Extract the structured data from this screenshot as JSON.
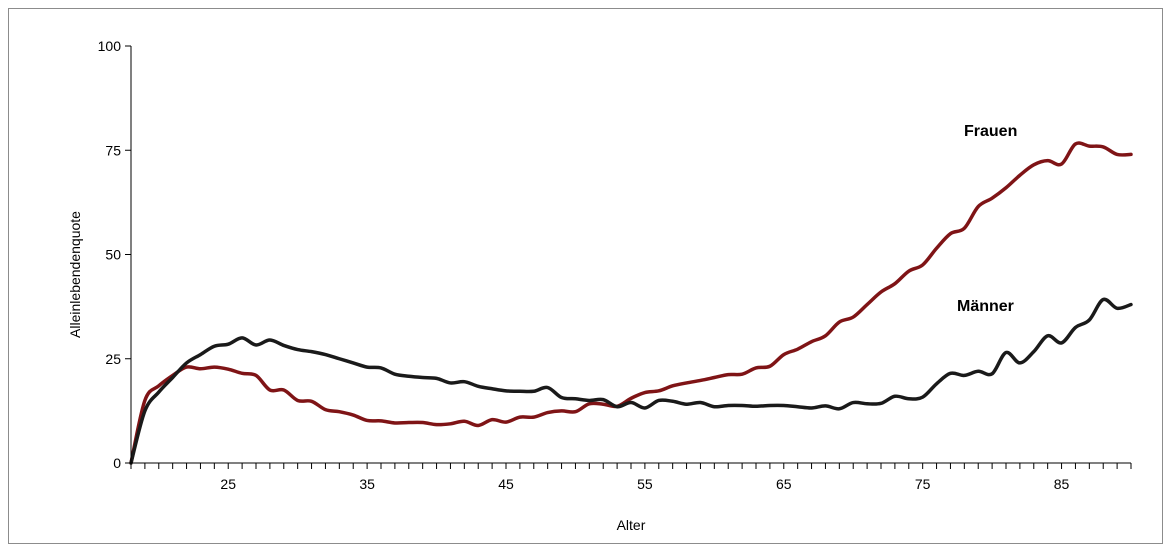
{
  "chart_data": {
    "type": "line",
    "title": "",
    "xlabel": "Alter",
    "ylabel": "Alleinlebendenquote",
    "xlim": [
      18,
      90
    ],
    "ylim": [
      0,
      100
    ],
    "x_ticks": [
      25,
      35,
      45,
      55,
      65,
      75,
      85
    ],
    "y_ticks": [
      0,
      25,
      50,
      75,
      100
    ],
    "grid": false,
    "legend": "labels placed next to lines",
    "x": [
      18,
      19,
      20,
      21,
      22,
      23,
      24,
      25,
      26,
      27,
      28,
      29,
      30,
      31,
      32,
      33,
      34,
      35,
      36,
      37,
      38,
      39,
      40,
      41,
      42,
      43,
      44,
      45,
      46,
      47,
      48,
      49,
      50,
      51,
      52,
      53,
      54,
      55,
      56,
      57,
      58,
      59,
      60,
      61,
      62,
      63,
      64,
      65,
      66,
      67,
      68,
      69,
      70,
      71,
      72,
      73,
      74,
      75,
      76,
      77,
      78,
      79,
      80,
      81,
      82,
      83,
      84,
      85,
      86,
      87,
      88,
      89,
      90
    ],
    "series": [
      {
        "name": "Frauen",
        "color": "#7f1416",
        "values": [
          0,
          15,
          18.5,
          21,
          23,
          22.6,
          23,
          22.5,
          21.5,
          21,
          17.5,
          17.5,
          15,
          14.8,
          12.8,
          12.3,
          11.5,
          10.2,
          10.1,
          9.6,
          9.7,
          9.7,
          9.2,
          9.4,
          10,
          9,
          10.4,
          9.8,
          11,
          11,
          12.1,
          12.5,
          12.3,
          14.2,
          14.1,
          13.6,
          15.5,
          16.9,
          17.3,
          18.5,
          19.2,
          19.8,
          20.5,
          21.2,
          21.3,
          22.8,
          23.2,
          26,
          27.3,
          29.1,
          30.5,
          33.8,
          35,
          38,
          41,
          43,
          46,
          47.5,
          51.5,
          55,
          56.3,
          61.5,
          63.5,
          66,
          69,
          71.5,
          72.5,
          71.7,
          76.5,
          76,
          75.8,
          74,
          74
        ]
      },
      {
        "name": "Männer",
        "color": "#1a1a1a",
        "values": [
          0,
          12.5,
          17,
          20.5,
          24,
          26,
          28,
          28.5,
          30,
          28.3,
          29.5,
          28.2,
          27.2,
          26.7,
          26,
          25,
          24,
          23,
          22.8,
          21.3,
          20.8,
          20.5,
          20.3,
          19.2,
          19.5,
          18.4,
          17.8,
          17.3,
          17.2,
          17.2,
          18.1,
          15.7,
          15.4,
          15,
          15.2,
          13.5,
          14.5,
          13.2,
          15,
          14.8,
          14.1,
          14.5,
          13.5,
          13.8,
          13.8,
          13.6,
          13.8,
          13.8,
          13.5,
          13.2,
          13.7,
          13,
          14.5,
          14.2,
          14.3,
          16,
          15.4,
          15.8,
          19,
          21.5,
          21,
          22,
          21.4,
          26.5,
          24,
          26.7,
          30.5,
          28.8,
          32.5,
          34.3,
          39.2,
          37.1,
          38
        ]
      }
    ]
  }
}
